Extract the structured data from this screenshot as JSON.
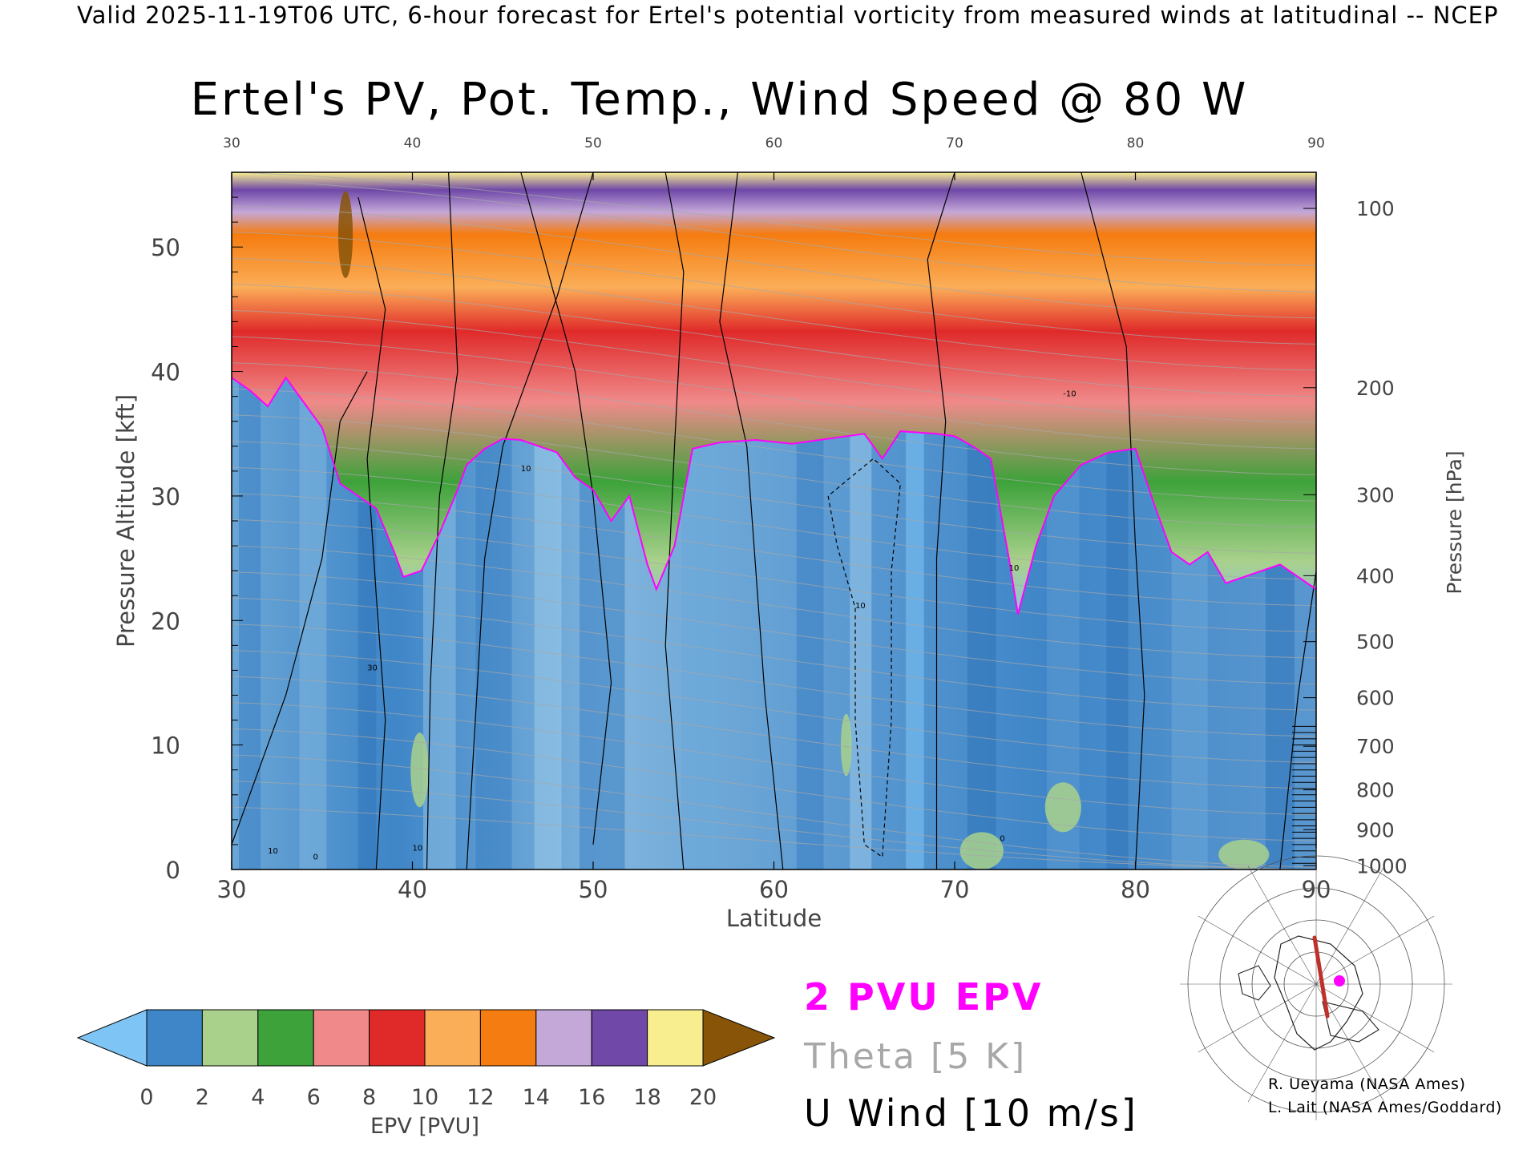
{
  "header": {
    "valid_line": "Valid 2025-11-19T06 UTC, 6-hour forecast for Ertel's potential vorticity from measured winds at latitudinal -- NCEP"
  },
  "chart_data": {
    "type": "heatmap",
    "title": "Ertel's PV, Pot. Temp., Wind Speed @ 80 W",
    "xlabel": "Latitude",
    "ylabel": "Pressure Altitude [kft]",
    "ylabel_right": "Pressure [hPa]",
    "xlim": [
      30,
      90
    ],
    "ylim": [
      0,
      56
    ],
    "x_ticks": [
      30,
      40,
      50,
      60,
      70,
      80,
      90
    ],
    "x_tick_labels": [
      "30",
      "40",
      "50",
      "60",
      "70",
      "80",
      "90"
    ],
    "y_ticks": [
      0,
      10,
      20,
      30,
      40,
      50
    ],
    "y_tick_labels": [
      "0",
      "10",
      "20",
      "30",
      "40",
      "50"
    ],
    "pressure_ticks": [
      {
        "label": "100",
        "kft": 53.1
      },
      {
        "label": "200",
        "kft": 38.7
      },
      {
        "label": "300",
        "kft": 30.1
      },
      {
        "label": "400",
        "kft": 23.6
      },
      {
        "label": "500",
        "kft": 18.3
      },
      {
        "label": "600",
        "kft": 13.8
      },
      {
        "label": "700",
        "kft": 9.9
      },
      {
        "label": "800",
        "kft": 6.4
      },
      {
        "label": "900",
        "kft": 3.2
      },
      {
        "label": "1000",
        "kft": 0.3
      }
    ],
    "tropopause_2pvu_kft": [
      {
        "lat": 30,
        "kft": 39.5
      },
      {
        "lat": 31,
        "kft": 38.5
      },
      {
        "lat": 32,
        "kft": 37.2
      },
      {
        "lat": 33,
        "kft": 39.5
      },
      {
        "lat": 34,
        "kft": 37.5
      },
      {
        "lat": 35,
        "kft": 35.5
      },
      {
        "lat": 36,
        "kft": 31.0
      },
      {
        "lat": 37,
        "kft": 30.0
      },
      {
        "lat": 38,
        "kft": 29.0
      },
      {
        "lat": 39,
        "kft": 25.5
      },
      {
        "lat": 39.5,
        "kft": 23.5
      },
      {
        "lat": 40.5,
        "kft": 24.0
      },
      {
        "lat": 41.5,
        "kft": 27.0
      },
      {
        "lat": 42.5,
        "kft": 30.5
      },
      {
        "lat": 43,
        "kft": 32.5
      },
      {
        "lat": 44,
        "kft": 33.8
      },
      {
        "lat": 45,
        "kft": 34.6
      },
      {
        "lat": 46,
        "kft": 34.5
      },
      {
        "lat": 47,
        "kft": 34.0
      },
      {
        "lat": 48,
        "kft": 33.5
      },
      {
        "lat": 49,
        "kft": 31.5
      },
      {
        "lat": 50,
        "kft": 30.5
      },
      {
        "lat": 51,
        "kft": 28.0
      },
      {
        "lat": 52,
        "kft": 30.0
      },
      {
        "lat": 53,
        "kft": 24.5
      },
      {
        "lat": 53.5,
        "kft": 22.5
      },
      {
        "lat": 54.5,
        "kft": 26.0
      },
      {
        "lat": 55.5,
        "kft": 33.8
      },
      {
        "lat": 57,
        "kft": 34.3
      },
      {
        "lat": 59,
        "kft": 34.5
      },
      {
        "lat": 61,
        "kft": 34.2
      },
      {
        "lat": 63,
        "kft": 34.6
      },
      {
        "lat": 65,
        "kft": 35.0
      },
      {
        "lat": 66,
        "kft": 33.0
      },
      {
        "lat": 67,
        "kft": 35.2
      },
      {
        "lat": 69,
        "kft": 35.0
      },
      {
        "lat": 70,
        "kft": 34.8
      },
      {
        "lat": 71,
        "kft": 34.0
      },
      {
        "lat": 72,
        "kft": 33.0
      },
      {
        "lat": 73,
        "kft": 25.0
      },
      {
        "lat": 73.5,
        "kft": 20.5
      },
      {
        "lat": 74.5,
        "kft": 26.0
      },
      {
        "lat": 75.5,
        "kft": 30.0
      },
      {
        "lat": 77,
        "kft": 32.5
      },
      {
        "lat": 78.5,
        "kft": 33.5
      },
      {
        "lat": 80,
        "kft": 33.8
      },
      {
        "lat": 81,
        "kft": 29.5
      },
      {
        "lat": 82,
        "kft": 25.5
      },
      {
        "lat": 83,
        "kft": 24.5
      },
      {
        "lat": 84,
        "kft": 25.5
      },
      {
        "lat": 85,
        "kft": 23.0
      },
      {
        "lat": 86,
        "kft": 23.5
      },
      {
        "lat": 88,
        "kft": 24.5
      },
      {
        "lat": 90,
        "kft": 22.5
      }
    ],
    "colorbar": {
      "label": "EPV [PVU]",
      "min": 0,
      "max": 20,
      "step": 2,
      "tick_labels": [
        "0",
        "2",
        "4",
        "6",
        "8",
        "10",
        "12",
        "14",
        "16",
        "18",
        "20"
      ],
      "extend": "both",
      "colors": [
        "#3f86c8",
        "#a9d18c",
        "#3da23a",
        "#f08a8a",
        "#e02a2a",
        "#fbae58",
        "#f57c10",
        "#c4a8d8",
        "#6f48a8",
        "#f8ee90"
      ],
      "under_color": "#7ec4f5",
      "over_color": "#875408"
    },
    "legend": [
      {
        "label": "2 PVU EPV",
        "color": "#ff00ff"
      },
      {
        "label": "Theta [5 K]",
        "color": "#a8a8a8"
      },
      {
        "label": "U Wind [10 m/s]",
        "color": "#000000"
      }
    ],
    "contour_labels": [
      "10",
      "30",
      "0",
      "10",
      "10",
      "10",
      "0",
      "10",
      "-10"
    ],
    "colors": {
      "tropopause": "#ff00ff",
      "theta": "#a8a8a8",
      "wind": "#000000",
      "section_line": "#c0302a",
      "marker": "#ff00ff"
    }
  },
  "inset_map": {
    "description_icon": "polar-stereographic-map-icon"
  },
  "credits": [
    "R. Ueyama (NASA Ames)",
    "L. Lait (NASA Ames/Goddard)"
  ]
}
